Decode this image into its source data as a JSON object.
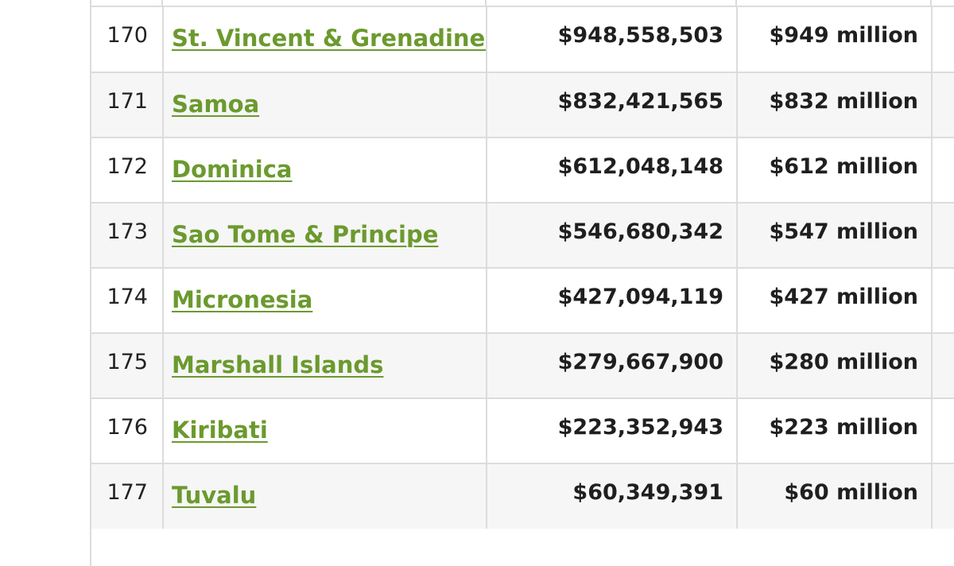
{
  "rows": [
    {
      "rank": "170",
      "country": "St. Vincent & Grenadines",
      "gdp": "$948,558,503",
      "gdp_short": "$949 million"
    },
    {
      "rank": "171",
      "country": "Samoa",
      "gdp": "$832,421,565",
      "gdp_short": "$832 million"
    },
    {
      "rank": "172",
      "country": "Dominica",
      "gdp": "$612,048,148",
      "gdp_short": "$612 million"
    },
    {
      "rank": "173",
      "country": "Sao Tome & Principe",
      "gdp": "$546,680,342",
      "gdp_short": "$547 million"
    },
    {
      "rank": "174",
      "country": "Micronesia",
      "gdp": "$427,094,119",
      "gdp_short": "$427 million"
    },
    {
      "rank": "175",
      "country": "Marshall Islands",
      "gdp": "$279,667,900",
      "gdp_short": "$280 million"
    },
    {
      "rank": "176",
      "country": "Kiribati",
      "gdp": "$223,352,943",
      "gdp_short": "$223 million"
    },
    {
      "rank": "177",
      "country": "Tuvalu",
      "gdp": "$60,349,391",
      "gdp_short": "$60 million"
    }
  ],
  "colors": {
    "link": "#6b9a2e",
    "stripe": "#f6f6f6",
    "border": "#dcdcdc",
    "text": "#1f1f1f"
  }
}
